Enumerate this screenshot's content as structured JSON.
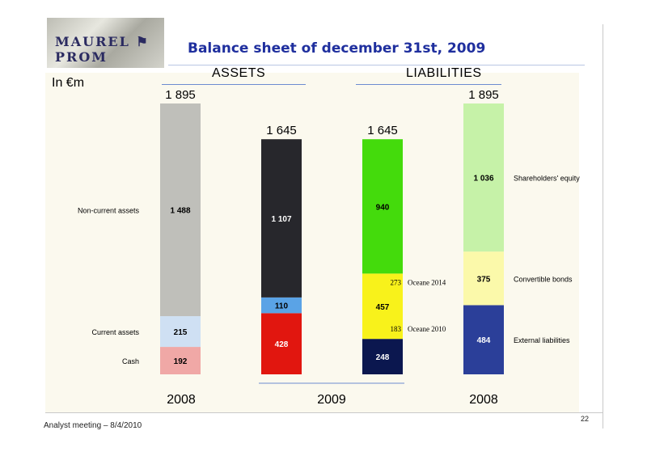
{
  "header": {
    "logo_text": "MAUREL PROM",
    "title": "Balance sheet of december 31st, 2009",
    "unit": "In €m"
  },
  "sections": {
    "assets": "ASSETS",
    "liabilities": "LIABILITIES"
  },
  "footer": {
    "text": "Analyst meeting – 8/4/2010",
    "page_number": "22"
  },
  "chart_data": {
    "type": "bar",
    "stacked": true,
    "groups": [
      {
        "section": "ASSETS",
        "year": "2008",
        "total": "1 895",
        "segments": [
          {
            "label": "Cash",
            "value": 192,
            "display": "192",
            "color": "#f0a8a6"
          },
          {
            "label": "Current assets",
            "value": 215,
            "display": "215",
            "color": "#cfe0f3"
          },
          {
            "label": "Non-current assets",
            "value": 1488,
            "display": "1 488",
            "color": "#bfbfba"
          }
        ]
      },
      {
        "section": "ASSETS",
        "year": "2009",
        "total": "1 645",
        "segments": [
          {
            "label": "",
            "value": 428,
            "display": "428",
            "color": "#e1160f"
          },
          {
            "label": "",
            "value": 110,
            "display": "110",
            "color": "#5aa3e6"
          },
          {
            "label": "",
            "value": 1107,
            "display": "1 107",
            "color": "#27272c"
          }
        ]
      },
      {
        "section": "LIABILITIES",
        "year": "2009",
        "total": "1 645",
        "segments": [
          {
            "label": "",
            "value": 248,
            "display": "248",
            "color": "#0b174f"
          },
          {
            "label": "",
            "value": 457,
            "display": "457",
            "color": "#f8f21b"
          },
          {
            "label": "",
            "value": 940,
            "display": "940",
            "color": "#44db0c"
          }
        ],
        "annotations": [
          {
            "value": "183",
            "label": "Oceane 2010"
          },
          {
            "value": "273",
            "label": "Oceane 2014"
          }
        ]
      },
      {
        "section": "LIABILITIES",
        "year": "2008",
        "total": "1 895",
        "segments": [
          {
            "label": "External liabilities",
            "value": 484,
            "display": "484",
            "color": "#2b3f99"
          },
          {
            "label": "Convertible bonds",
            "value": 375,
            "display": "375",
            "color": "#fbf9aa"
          },
          {
            "label": "Shareholders' equity",
            "value": 1036,
            "display": "1 036",
            "color": "#c6f2a8"
          }
        ]
      }
    ],
    "year_labels": [
      "2008",
      "2009",
      "2008"
    ],
    "ylim": [
      0,
      1895
    ]
  },
  "colors": {
    "title": "#1f2f9e",
    "section_line": "#6d8cd0",
    "background": "#fbf9ee"
  }
}
